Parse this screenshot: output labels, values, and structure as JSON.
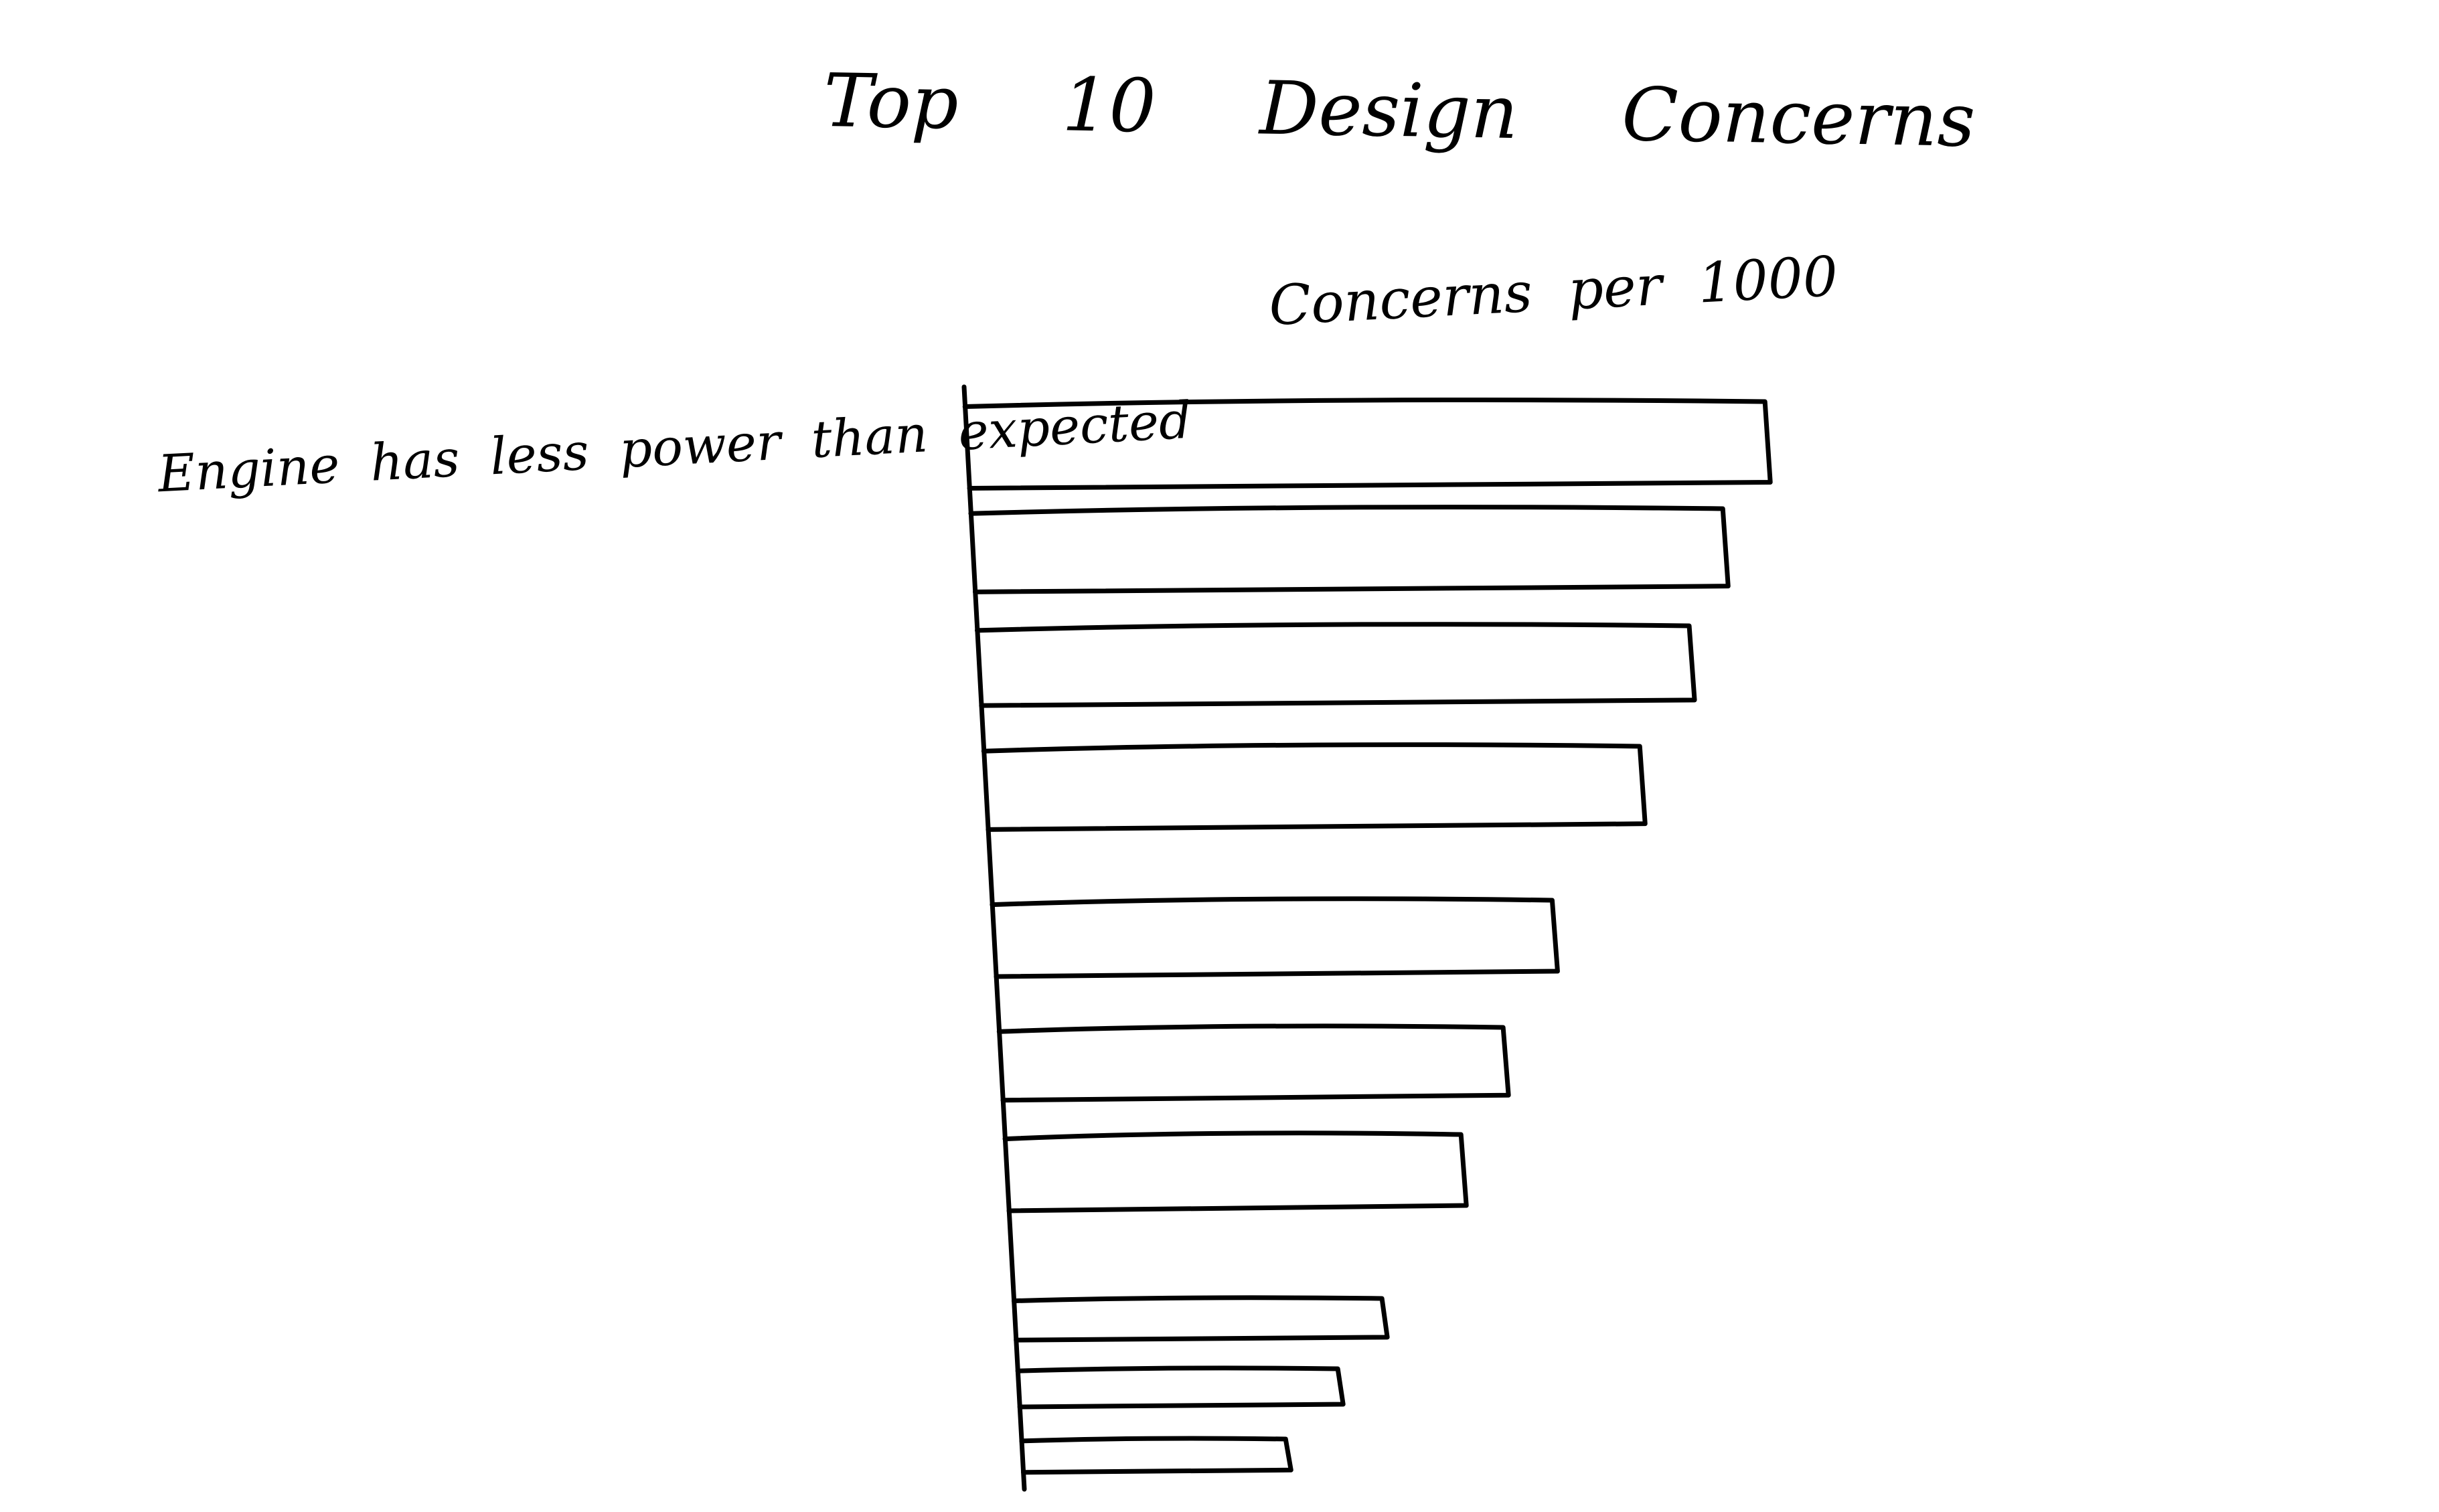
{
  "chart_data": {
    "type": "bar",
    "orientation": "horizontal",
    "title": "Top 10 Design Concerns",
    "subtitle": "Concerns per 1000",
    "categories": [
      "Engine has less power than expected",
      "",
      "",
      "",
      "",
      "",
      "",
      "",
      "",
      ""
    ],
    "values": [
      100,
      94,
      89,
      82,
      70,
      63,
      57,
      46,
      40,
      33
    ],
    "xlim": [
      0,
      100
    ],
    "grid": false,
    "legend": "none"
  }
}
